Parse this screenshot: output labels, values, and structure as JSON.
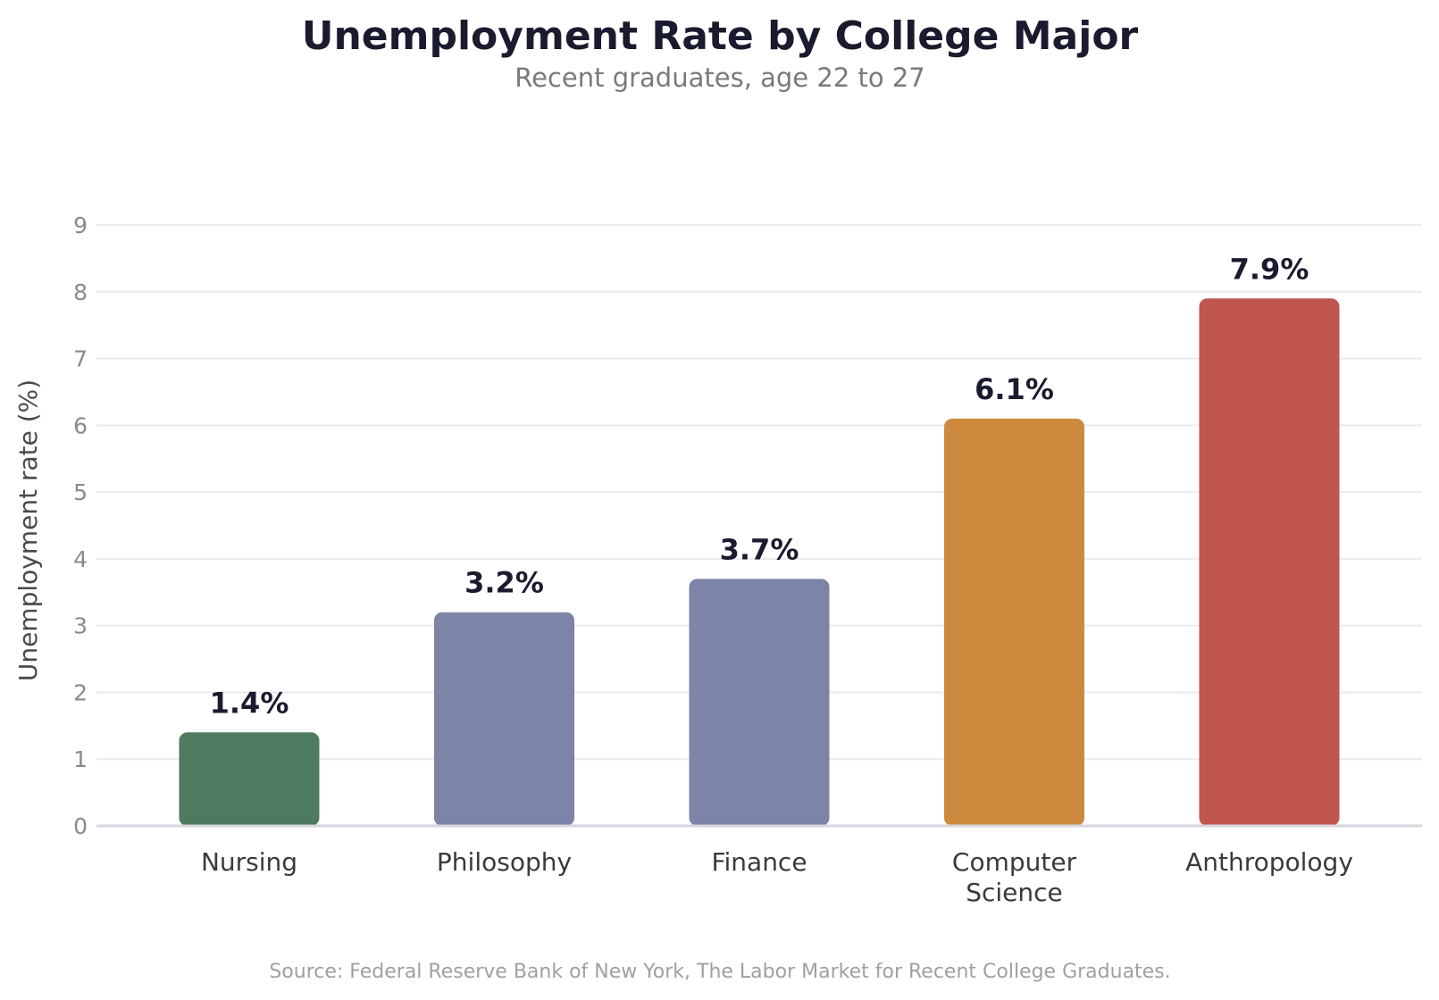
{
  "chart_data": {
    "type": "bar",
    "title": "Unemployment Rate by College Major",
    "subtitle": "Recent graduates, age 22 to 27",
    "xlabel": "",
    "ylabel": "Unemployment rate (%)",
    "ylim": [
      0,
      9
    ],
    "yticks": [
      0,
      1,
      2,
      3,
      4,
      5,
      6,
      7,
      8,
      9
    ],
    "grid": true,
    "categories": [
      "Nursing",
      "Philosophy",
      "Finance",
      "Computer Science",
      "Anthropology"
    ],
    "category_lines": [
      [
        "Nursing"
      ],
      [
        "Philosophy"
      ],
      [
        "Finance"
      ],
      [
        "Computer",
        "Science"
      ],
      [
        "Anthropology"
      ]
    ],
    "values": [
      1.4,
      3.2,
      3.7,
      6.1,
      7.9
    ],
    "value_labels": [
      "1.4%",
      "3.2%",
      "3.7%",
      "6.1%",
      "7.9%"
    ],
    "colors": [
      "#4e7a60",
      "#7c84a8",
      "#7c84a8",
      "#cd8a3f",
      "#c0564d"
    ],
    "source": "Source: Federal Reserve Bank of New York, The Labor Market for Recent College Graduates."
  }
}
